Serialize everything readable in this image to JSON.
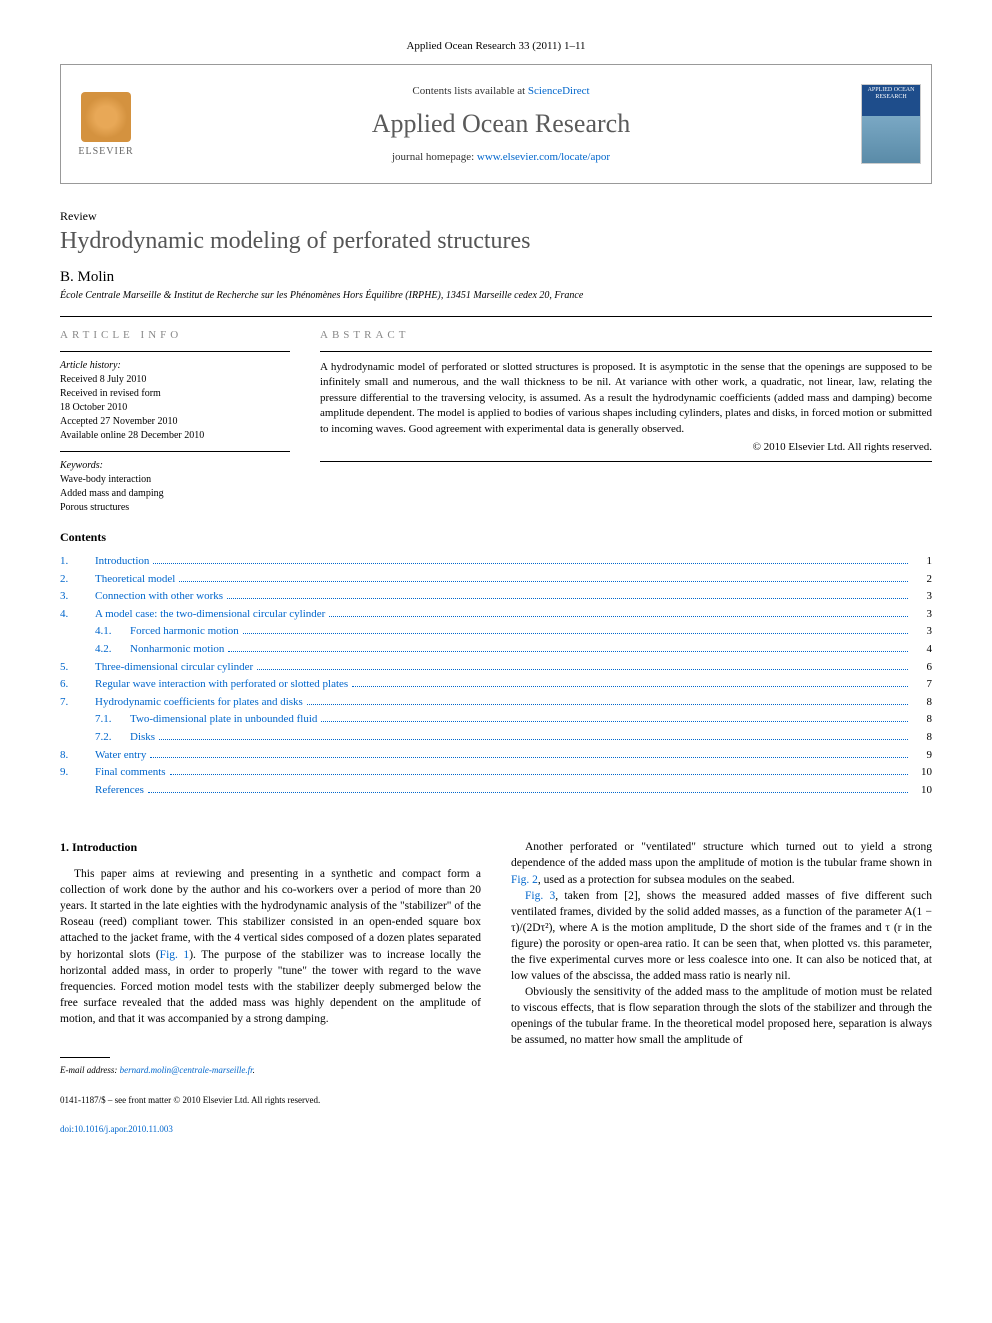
{
  "header": {
    "citation": "Applied Ocean Research 33 (2011) 1–11",
    "contents_prefix": "Contents lists available at ",
    "contents_link": "ScienceDirect",
    "journal_name": "Applied Ocean Research",
    "homepage_prefix": "journal homepage: ",
    "homepage_url": "www.elsevier.com/locate/apor",
    "elsevier_label": "ELSEVIER",
    "cover_text": "APPLIED OCEAN RESEARCH"
  },
  "article": {
    "type": "Review",
    "title": "Hydrodynamic modeling of perforated structures",
    "author": "B. Molin",
    "affiliation": "École Centrale Marseille & Institut de Recherche sur les Phénomènes Hors Équilibre (IRPHE), 13451 Marseille cedex 20, France"
  },
  "info": {
    "heading": "ARTICLE INFO",
    "history_label": "Article history:",
    "received": "Received 8 July 2010",
    "revised1": "Received in revised form",
    "revised2": "18 October 2010",
    "accepted": "Accepted 27 November 2010",
    "online": "Available online 28 December 2010",
    "keywords_label": "Keywords:",
    "kw1": "Wave-body interaction",
    "kw2": "Added mass and damping",
    "kw3": "Porous structures"
  },
  "abstract": {
    "heading": "ABSTRACT",
    "text": "A hydrodynamic model of perforated or slotted structures is proposed. It is asymptotic in the sense that the openings are supposed to be infinitely small and numerous, and the wall thickness to be nil. At variance with other work, a quadratic, not linear, law, relating the pressure differential to the traversing velocity, is assumed. As a result the hydrodynamic coefficients (added mass and damping) become amplitude dependent. The model is applied to bodies of various shapes including cylinders, plates and disks, in forced motion or submitted to incoming waves. Good agreement with experimental data is generally observed.",
    "copyright": "© 2010 Elsevier Ltd. All rights reserved."
  },
  "toc": {
    "heading": "Contents",
    "items": [
      {
        "num": "1.",
        "title": "Introduction",
        "page": "1"
      },
      {
        "num": "2.",
        "title": "Theoretical model",
        "page": "2"
      },
      {
        "num": "3.",
        "title": "Connection with other works",
        "page": "3"
      },
      {
        "num": "4.",
        "title": "A model case: the two-dimensional circular cylinder",
        "page": "3"
      },
      {
        "num": "4.1.",
        "title": "Forced harmonic motion",
        "page": "3",
        "sub": true
      },
      {
        "num": "4.2.",
        "title": "Nonharmonic motion",
        "page": "4",
        "sub": true
      },
      {
        "num": "5.",
        "title": "Three-dimensional circular cylinder",
        "page": "6"
      },
      {
        "num": "6.",
        "title": "Regular wave interaction with perforated or slotted plates",
        "page": "7"
      },
      {
        "num": "7.",
        "title": "Hydrodynamic coefficients for plates and disks",
        "page": "8"
      },
      {
        "num": "7.1.",
        "title": "Two-dimensional plate in unbounded fluid",
        "page": "8",
        "sub": true
      },
      {
        "num": "7.2.",
        "title": "Disks",
        "page": "8",
        "sub": true
      },
      {
        "num": "8.",
        "title": "Water entry",
        "page": "9"
      },
      {
        "num": "9.",
        "title": "Final comments",
        "page": "10"
      },
      {
        "num": "",
        "title": "References",
        "page": "10"
      }
    ]
  },
  "body": {
    "section1_heading": "1. Introduction",
    "p1": "This paper aims at reviewing and presenting in a synthetic and compact form a collection of work done by the author and his co-workers over a period of more than 20 years. It started in the late eighties with the hydrodynamic analysis of the \"stabilizer\" of the Roseau (reed) compliant tower. This stabilizer consisted in an open-ended square box attached to the jacket frame, with the 4 vertical sides composed of a dozen plates separated by horizontal slots (",
    "fig1": "Fig. 1",
    "p1b": "). The purpose of the stabilizer was to increase locally the horizontal added mass, in order to properly \"tune\" the tower with regard to the wave frequencies. Forced motion model tests with the stabilizer deeply submerged below the free surface revealed that the added mass was highly dependent on the amplitude of motion, and that it was accompanied by a strong damping.",
    "p2a": "Another perforated or \"ventilated\" structure which turned out to yield a strong dependence of the added mass upon the amplitude of motion is the tubular frame shown in ",
    "fig2": "Fig. 2",
    "p2b": ", used as a protection for subsea modules on the seabed.",
    "p3a_fig": "Fig. 3",
    "p3a": ", taken from [2], shows the measured added masses of five different such ventilated frames, divided by the solid added masses, as a function of the parameter A(1 − τ)/(2Dτ²), where A is the motion amplitude, D the short side of the frames and τ (r in the figure) the porosity or open-area ratio. It can be seen that, when plotted vs. this parameter, the five experimental curves more or less coalesce into one. It can also be noticed that, at low values of the abscissa, the added mass ratio is nearly nil.",
    "p4": "Obviously the sensitivity of the added mass to the amplitude of motion must be related to viscous effects, that is flow separation through the slots of the stabilizer and through the openings of the tubular frame. In the theoretical model proposed here, separation is always be assumed, no matter how small the amplitude of"
  },
  "footnote": {
    "email_label": "E-mail address: ",
    "email": "bernard.molin@centrale-marseille.fr"
  },
  "footer": {
    "line1": "0141-1187/$ – see front matter © 2010 Elsevier Ltd. All rights reserved.",
    "doi": "doi:10.1016/j.apor.2010.11.003"
  },
  "colors": {
    "link": "#0066cc",
    "heading_gray": "#555555",
    "border": "#999999"
  }
}
